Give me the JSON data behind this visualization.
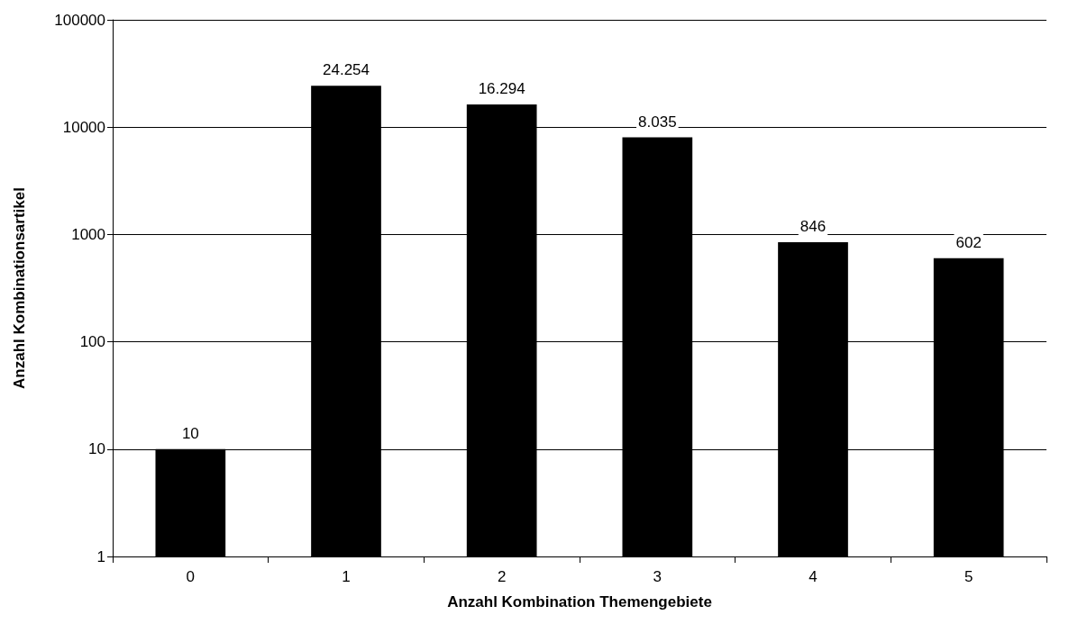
{
  "chart_data": {
    "type": "bar",
    "xlabel": "Anzahl Kombination Themengebiete",
    "ylabel": "Anzahl Kombinationsartikel",
    "categories": [
      "0",
      "1",
      "2",
      "3",
      "4",
      "5"
    ],
    "values": [
      10,
      24254,
      16294,
      8035,
      846,
      602
    ],
    "value_labels": [
      "10",
      "24.254",
      "16.294",
      "8.035",
      "846",
      "602"
    ],
    "color": "#000000",
    "log": true,
    "ylim": [
      1,
      100000
    ],
    "yticks": [
      1,
      10,
      100,
      1000,
      10000,
      100000
    ],
    "grid": "y"
  }
}
